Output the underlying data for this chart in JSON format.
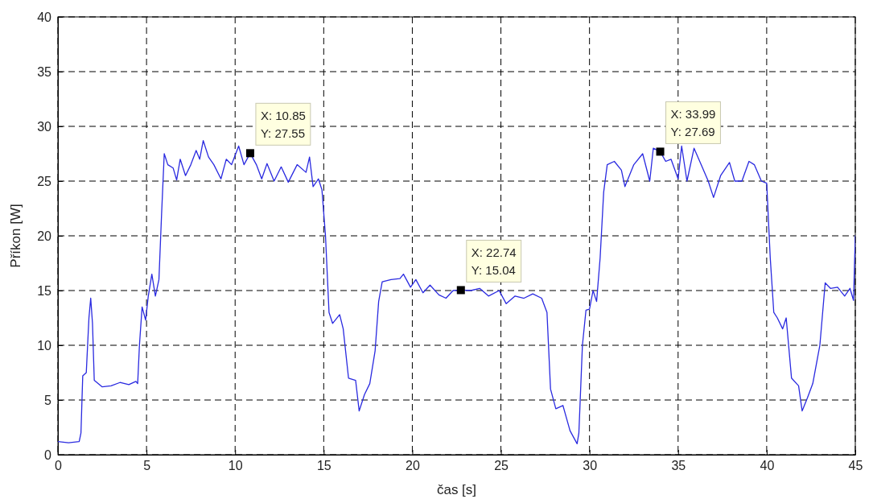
{
  "chart_data": {
    "type": "line",
    "xlabel": "čas [s]",
    "ylabel": "Příkon [W]",
    "xlim": [
      0,
      45
    ],
    "xticks": [
      0,
      5,
      10,
      15,
      20,
      25,
      30,
      35,
      40,
      45
    ],
    "ylim": [
      0,
      40
    ],
    "yticks": [
      0,
      5,
      10,
      15,
      20,
      25,
      30,
      35,
      40
    ],
    "grid": true,
    "line_style": "solid",
    "series": [
      {
        "color": "#2a2ae0",
        "x": [
          0,
          0.6,
          1.2,
          1.3,
          1.4,
          1.6,
          1.75,
          1.85,
          1.95,
          2.05,
          2.5,
          3,
          3.5,
          4,
          4.4,
          4.5,
          4.6,
          4.75,
          4.95,
          5.1,
          5.3,
          5.5,
          5.7,
          5.85,
          6.0,
          6.2,
          6.5,
          6.7,
          6.9,
          7.2,
          7.5,
          7.8,
          8.0,
          8.2,
          8.5,
          8.8,
          9.2,
          9.5,
          9.8,
          10.2,
          10.5,
          10.85,
          11.2,
          11.5,
          11.8,
          12.2,
          12.6,
          13.0,
          13.5,
          14.0,
          14.2,
          14.4,
          14.7,
          14.9,
          15.1,
          15.3,
          15.5,
          15.9,
          16.1,
          16.4,
          16.8,
          17.0,
          17.3,
          17.6,
          17.9,
          18.1,
          18.3,
          18.8,
          19.3,
          19.5,
          19.9,
          20.2,
          20.6,
          21.0,
          21.5,
          21.9,
          22.3,
          22.74,
          23.3,
          23.8,
          24.3,
          24.9,
          25.3,
          25.8,
          26.3,
          26.8,
          27.3,
          27.6,
          27.8,
          28.1,
          28.5,
          28.9,
          29.3,
          29.4,
          29.6,
          29.8,
          30.0,
          30.2,
          30.4,
          30.6,
          30.8,
          31.0,
          31.4,
          31.8,
          32.0,
          32.5,
          33.0,
          33.4,
          33.6,
          33.99,
          34.3,
          34.6,
          35.0,
          35.2,
          35.5,
          35.9,
          36.3,
          36.7,
          37.0,
          37.4,
          37.9,
          38.2,
          38.6,
          39.0,
          39.3,
          39.7,
          40.0,
          40.2,
          40.4,
          40.6,
          40.9,
          41.1,
          41.4,
          41.8,
          42.0,
          42.3,
          42.6,
          43.0,
          43.3,
          43.6,
          44.0,
          44.4,
          44.7,
          44.9,
          45
        ],
        "values": [
          1.2,
          1.1,
          1.2,
          2,
          7.2,
          7.5,
          12.5,
          14.3,
          12,
          6.8,
          6.2,
          6.3,
          6.6,
          6.4,
          6.7,
          6.5,
          10,
          13.5,
          12.3,
          14.5,
          16.5,
          14.5,
          16,
          22,
          27.5,
          26.5,
          26.2,
          25.1,
          27,
          25.5,
          26.5,
          27.8,
          27,
          28.7,
          27.2,
          26.5,
          25.2,
          27,
          26.5,
          28.2,
          26.5,
          27.55,
          26.5,
          25.2,
          26.6,
          25,
          26.3,
          24.9,
          26.5,
          25.8,
          27.2,
          24.5,
          25.2,
          24.2,
          20,
          13,
          12,
          12.8,
          11.5,
          7,
          6.8,
          4,
          5.5,
          6.5,
          9.5,
          14,
          15.8,
          16,
          16.1,
          16.5,
          15.3,
          16,
          14.8,
          15.5,
          14.6,
          14.3,
          15,
          15.04,
          15,
          15.2,
          14.5,
          15,
          13.8,
          14.5,
          14.3,
          14.7,
          14.3,
          13,
          6,
          4.2,
          4.5,
          2.2,
          1,
          2,
          10,
          13.2,
          13.3,
          15,
          14,
          18,
          24,
          26.5,
          26.8,
          26,
          24.5,
          26.5,
          27.5,
          25,
          28,
          27.69,
          26.8,
          27,
          25.2,
          28.2,
          25,
          28,
          26.5,
          25,
          23.5,
          25.5,
          26.7,
          25,
          25,
          26.8,
          26.5,
          25,
          24.8,
          18,
          13,
          12.5,
          11.5,
          12.5,
          7,
          6.3,
          4,
          5.2,
          6.5,
          10,
          15.7,
          15.2,
          15.3,
          14.5,
          15.2,
          14.1,
          20
        ]
      }
    ],
    "annotations": [
      {
        "text": "X: 10.85\nY: 27.55",
        "x": 10.85,
        "y": 27.55
      },
      {
        "text": "X: 22.74\nY: 15.04",
        "x": 22.74,
        "y": 15.04
      },
      {
        "text": "X: 33.99\nY: 27.69",
        "x": 33.99,
        "y": 27.69
      }
    ]
  }
}
